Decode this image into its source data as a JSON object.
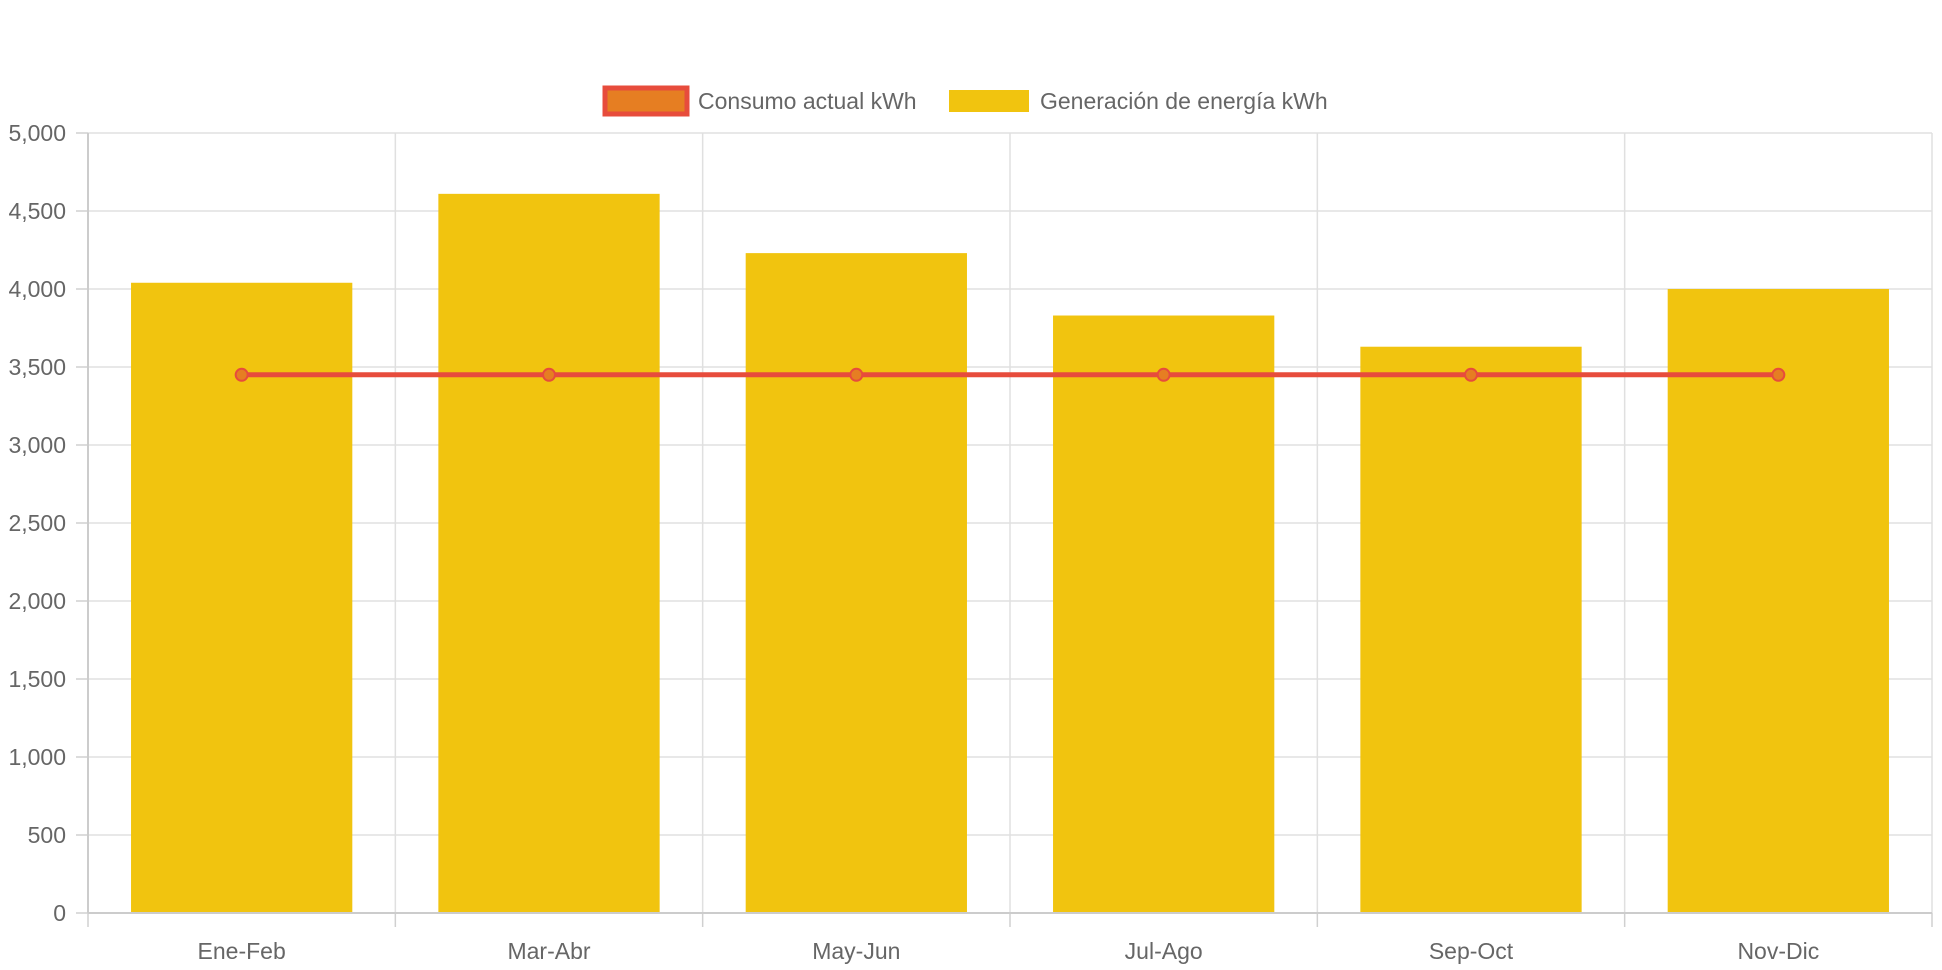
{
  "chart_data": {
    "type": "bar",
    "title": "",
    "xlabel": "",
    "ylabel": "",
    "categories": [
      "Ene-Feb",
      "Mar-Abr",
      "May-Jun",
      "Jul-Ago",
      "Sep-Oct",
      "Nov-Dic"
    ],
    "ylim": [
      0,
      5000
    ],
    "yticks": [
      0,
      500,
      1000,
      1500,
      2000,
      2500,
      3000,
      3500,
      4000,
      4500,
      5000
    ],
    "ytick_labels": [
      "0",
      "500",
      "1,000",
      "1,500",
      "2,000",
      "2,500",
      "3,000",
      "3,500",
      "4,000",
      "4,500",
      "5,000"
    ],
    "grid": true,
    "legend_position": "top",
    "series": [
      {
        "name": "Consumo actual kWh",
        "type": "line",
        "values": [
          3450,
          3450,
          3450,
          3450,
          3450,
          3450
        ],
        "color": "#e74c3c",
        "point_color": "#e67e22"
      },
      {
        "name": "Generación de energía kWh",
        "type": "bar",
        "values": [
          4040,
          4610,
          4230,
          3830,
          3630,
          4000
        ],
        "color": "#f1c40f"
      }
    ]
  }
}
